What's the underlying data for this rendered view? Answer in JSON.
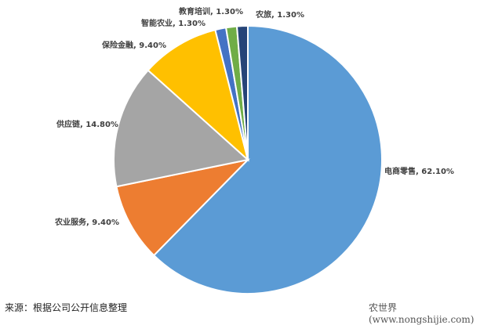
{
  "chart_data": {
    "type": "pie",
    "title": "",
    "start": "12 o'clock, clockwise",
    "slices": [
      {
        "label": "电商零售",
        "value": 62.1,
        "display": "电商零售, 62.10%",
        "color": "#5B9BD5"
      },
      {
        "label": "农业服务",
        "value": 9.4,
        "display": "农业服务, 9.40%",
        "color": "#ED7D31"
      },
      {
        "label": "供应链",
        "value": 14.8,
        "display": "供应链, 14.80%",
        "color": "#A5A5A5"
      },
      {
        "label": "保险金融",
        "value": 9.4,
        "display": "保险金融, 9.40%",
        "color": "#FFC000"
      },
      {
        "label": "智能农业",
        "value": 1.3,
        "display": "智能农业, 1.30%",
        "color": "#4472C4"
      },
      {
        "label": "教育培训",
        "value": 1.3,
        "display": "教育培训, 1.30%",
        "color": "#70AD47"
      },
      {
        "label": "农旅",
        "value": 1.3,
        "display": "农旅, 1.30%",
        "color": "#264478"
      }
    ]
  },
  "footer": {
    "source": "来源：根据公司公开信息整理",
    "watermark": "农世界(www.nongshijie.com)"
  }
}
